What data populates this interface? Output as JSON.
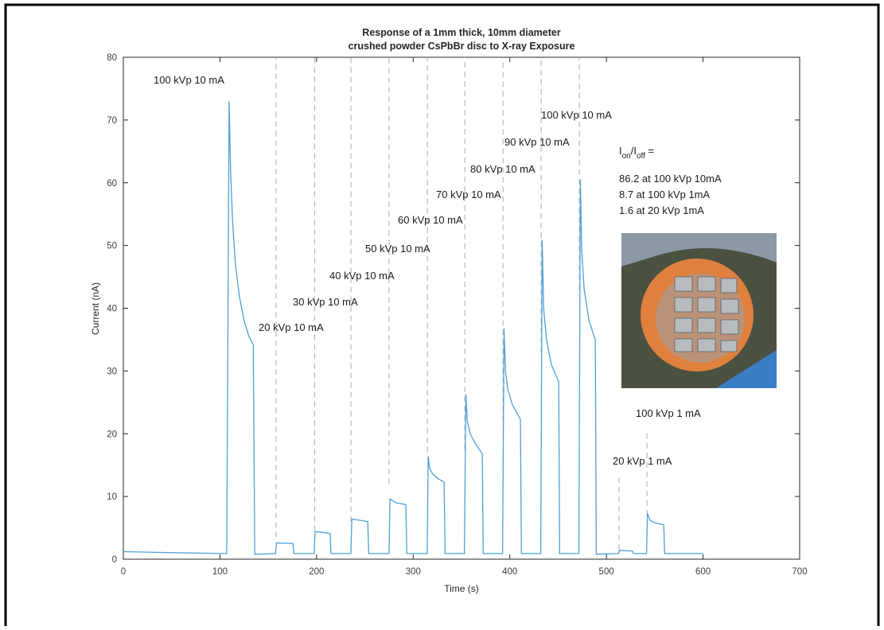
{
  "chart_data": {
    "type": "line",
    "title": [
      "Response of a 1mm thick, 10mm diameter",
      "crushed powder CsPbBr disc to X-ray Exposure"
    ],
    "xlabel": "Time (s)",
    "ylabel": "Current (nA)",
    "xlim": [
      0,
      700
    ],
    "ylim": [
      0,
      80
    ],
    "xticks": [
      0,
      100,
      200,
      300,
      400,
      500,
      600,
      700
    ],
    "yticks": [
      0,
      10,
      20,
      30,
      40,
      50,
      60,
      70,
      80
    ],
    "color": "#4f9fd6",
    "x": [
      0,
      50,
      107,
      109.5,
      111,
      113,
      116,
      120,
      125,
      130,
      134.5,
      136,
      157.5,
      158.5,
      175.5,
      176.5,
      197.5,
      198.5,
      205,
      214,
      215,
      235.5,
      236.5,
      253,
      254,
      275,
      276,
      282,
      292.4,
      293.4,
      314.5,
      315.5,
      317,
      320,
      326,
      332,
      333,
      353,
      354.5,
      356,
      359,
      364,
      371.5,
      372.5,
      392.5,
      394,
      395.5,
      398,
      403,
      411,
      412,
      432,
      433.5,
      435,
      438,
      443,
      450.6,
      451.6,
      471.5,
      473,
      474.5,
      477,
      482,
      488.5,
      489.5,
      512.5,
      513.5,
      527,
      528,
      541.5,
      542.5,
      545,
      550,
      559.3,
      560.3,
      600
    ],
    "values": [
      1.2,
      1.05,
      0.9,
      73,
      62,
      54,
      47,
      42,
      38,
      35.5,
      34.2,
      0.8,
      0.9,
      2.6,
      2.5,
      0.9,
      0.9,
      4.4,
      4.3,
      4.1,
      0.9,
      0.9,
      6.4,
      6.0,
      0.9,
      0.9,
      9.6,
      9.0,
      8.7,
      0.9,
      0.9,
      16.4,
      14.5,
      13.6,
      12.8,
      12.3,
      0.9,
      0.9,
      26.3,
      22,
      20,
      18.5,
      16.8,
      0.9,
      0.9,
      36.8,
      30,
      27,
      24.5,
      22.3,
      0.9,
      0.9,
      50.9,
      40,
      35,
      31,
      28.3,
      0.9,
      0.9,
      60.5,
      49,
      43,
      38,
      35,
      0.8,
      0.9,
      1.4,
      1.3,
      0.9,
      0.9,
      7.3,
      6.2,
      5.8,
      5.5,
      0.9,
      0.9
    ],
    "reference_lines": {
      "x": [
        158,
        198,
        235.6,
        275,
        314.7,
        353.4,
        393,
        432.5,
        472,
        513,
        542
      ],
      "y_start": [
        3.5,
        4.5,
        6,
        12,
        17,
        17.5,
        22,
        33,
        43,
        1.5,
        7
      ],
      "y_end": [
        80,
        80,
        80,
        80,
        80,
        80,
        80,
        80,
        80,
        13,
        20.5
      ]
    },
    "annotations": [
      "100 kVp 10 mA",
      "20 kVp 10 mA",
      "30 kVp 10 mA",
      "40 kVp 10 mA",
      "50 kVp 10 mA",
      "60 kVp 10 mA",
      "70 kVp 10 mA",
      "80 kVp 10 mA",
      "90 kVp 10 mA",
      "100 kVp 10 mA",
      "100 kVp 1 mA",
      "20 kVp 1 mA"
    ],
    "ratio_heading": [
      "I",
      "on",
      "/I",
      "off",
      " ="
    ],
    "ratio_lines": [
      "86.2 at 100 kVp 10mA",
      "8.7 at 100 kVp 1mA",
      "1.6 at 20 kVp 1mA"
    ]
  }
}
